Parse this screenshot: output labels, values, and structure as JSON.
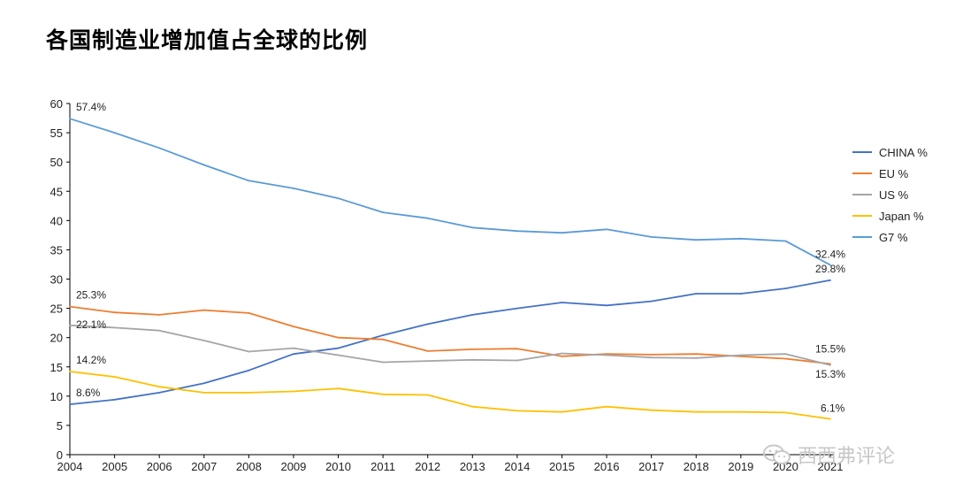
{
  "title": "各国制造业增加值占全球的比例",
  "watermark": "西西弗评论",
  "chart_data": {
    "type": "line",
    "x": [
      "2004",
      "2005",
      "2006",
      "2007",
      "2008",
      "2009",
      "2010",
      "2011",
      "2012",
      "2013",
      "2014",
      "2015",
      "2016",
      "2017",
      "2018",
      "2019",
      "2020",
      "2021"
    ],
    "ylim": [
      0,
      60
    ],
    "yticks": [
      0,
      5,
      10,
      15,
      20,
      25,
      30,
      35,
      40,
      45,
      50,
      55,
      60
    ],
    "legend_position": "right",
    "series": [
      {
        "name": "CHINA %",
        "color": "#4472c4",
        "values": [
          8.6,
          9.4,
          10.6,
          12.2,
          14.4,
          17.2,
          18.2,
          20.4,
          22.3,
          23.9,
          25.0,
          26.0,
          25.5,
          26.2,
          27.5,
          27.5,
          28.4,
          29.8
        ]
      },
      {
        "name": "EU %",
        "color": "#ed7d31",
        "values": [
          25.3,
          24.3,
          23.9,
          24.7,
          24.2,
          21.9,
          20.0,
          19.7,
          17.7,
          18.0,
          18.1,
          16.8,
          17.2,
          17.1,
          17.2,
          16.8,
          16.4,
          15.5
        ]
      },
      {
        "name": "US %",
        "color": "#a5a5a5",
        "values": [
          22.1,
          21.7,
          21.2,
          19.5,
          17.6,
          18.2,
          17.0,
          15.8,
          16.0,
          16.2,
          16.1,
          17.3,
          17.0,
          16.6,
          16.5,
          17.0,
          17.2,
          15.3
        ]
      },
      {
        "name": "Japan %",
        "color": "#ffc000",
        "values": [
          14.2,
          13.3,
          11.6,
          10.6,
          10.6,
          10.8,
          11.3,
          10.3,
          10.2,
          8.2,
          7.5,
          7.3,
          8.2,
          7.6,
          7.3,
          7.3,
          7.2,
          6.1
        ]
      },
      {
        "name": "G7 %",
        "color": "#5b9bd5",
        "values": [
          57.4,
          55.0,
          52.4,
          49.5,
          46.8,
          45.5,
          43.8,
          41.4,
          40.4,
          38.8,
          38.2,
          37.9,
          38.5,
          37.2,
          36.7,
          36.9,
          36.5,
          32.4
        ]
      }
    ],
    "annotations": [
      {
        "series": "G7 %",
        "index": 0,
        "text": "57.4%"
      },
      {
        "series": "EU %",
        "index": 0,
        "text": "25.3%"
      },
      {
        "series": "US %",
        "index": 0,
        "text": "22.1%"
      },
      {
        "series": "Japan %",
        "index": 0,
        "text": "14.2%"
      },
      {
        "series": "CHINA %",
        "index": 0,
        "text": "8.6%"
      },
      {
        "series": "G7 %",
        "index": 17,
        "text": "32.4%"
      },
      {
        "series": "CHINA %",
        "index": 17,
        "text": "29.8%"
      },
      {
        "series": "EU %",
        "index": 17,
        "text": "15.5%"
      },
      {
        "series": "US %",
        "index": 17,
        "text": "15.3%"
      },
      {
        "series": "Japan %",
        "index": 17,
        "text": "6.1%"
      }
    ]
  }
}
